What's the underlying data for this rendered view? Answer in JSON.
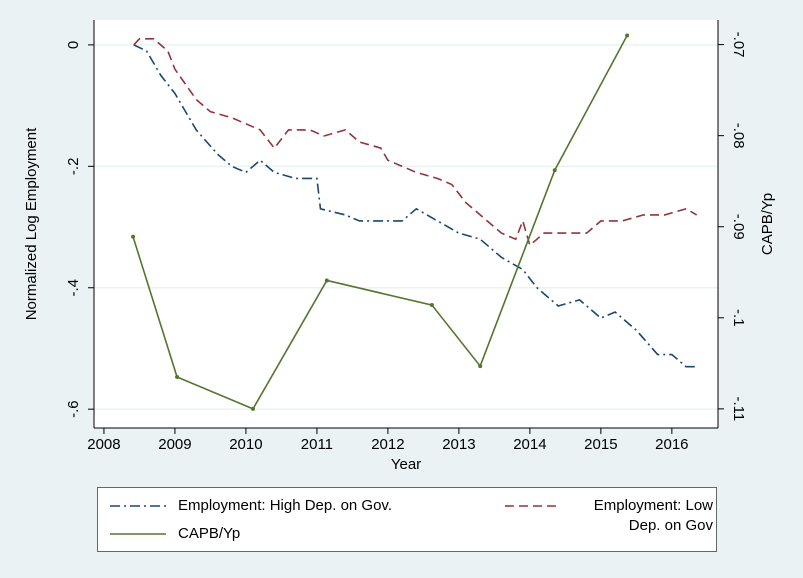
{
  "chart_data": {
    "type": "line",
    "xlabel": "Year",
    "ylabel": "Normalized Log Employment",
    "y2label": "CAPB/Yp",
    "xlim": [
      2007.86,
      2016.65
    ],
    "xticks": [
      2008,
      2009,
      2010,
      2011,
      2012,
      2013,
      2014,
      2015,
      2016
    ],
    "ylim": [
      -0.631,
      0.041
    ],
    "yticks": [
      {
        "value": 0,
        "label": "0"
      },
      {
        "value": -0.2,
        "label": "-.2"
      },
      {
        "value": -0.4,
        "label": "-.4"
      },
      {
        "value": -0.6,
        "label": "-.6"
      }
    ],
    "y2lim": [
      -0.1121,
      -0.0673
    ],
    "y2ticks": [
      {
        "value": -0.07,
        "label": "-.07"
      },
      {
        "value": -0.08,
        "label": "-.08"
      },
      {
        "value": -0.09,
        "label": "-.09"
      },
      {
        "value": -0.1,
        "label": "-.1"
      },
      {
        "value": -0.11,
        "label": "-.11"
      }
    ],
    "grid": true,
    "series": [
      {
        "name": "Employment: High Dep. on Gov.",
        "color": "#1a476f",
        "dash": "10 4 2 4",
        "x": [
          2008.42,
          2008.6,
          2008.8,
          2009.0,
          2009.3,
          2009.6,
          2009.8,
          2010.0,
          2010.2,
          2010.4,
          2010.7,
          2011.0,
          2011.05,
          2011.4,
          2011.6,
          2012.0,
          2012.2,
          2012.4,
          2012.7,
          2013.0,
          2013.3,
          2013.6,
          2013.9,
          2014.1,
          2014.4,
          2014.7,
          2015.0,
          2015.2,
          2015.5,
          2015.8,
          2016.0,
          2016.2,
          2016.35
        ],
        "values": [
          0,
          -0.01,
          -0.05,
          -0.08,
          -0.14,
          -0.18,
          -0.2,
          -0.21,
          -0.19,
          -0.21,
          -0.22,
          -0.22,
          -0.27,
          -0.28,
          -0.29,
          -0.29,
          -0.29,
          -0.27,
          -0.29,
          -0.31,
          -0.32,
          -0.35,
          -0.37,
          -0.4,
          -0.43,
          -0.42,
          -0.45,
          -0.44,
          -0.47,
          -0.51,
          -0.51,
          -0.53,
          -0.53
        ]
      },
      {
        "name": "Employment: Low Dep. on Gov",
        "color": "#90353b",
        "dash": "9 5",
        "x": [
          2008.42,
          2008.5,
          2008.7,
          2008.9,
          2009.0,
          2009.3,
          2009.5,
          2009.8,
          2010.0,
          2010.2,
          2010.4,
          2010.6,
          2010.9,
          2011.1,
          2011.4,
          2011.6,
          2011.9,
          2012.0,
          2012.4,
          2012.7,
          2012.9,
          2013.1,
          2013.4,
          2013.6,
          2013.8,
          2013.9,
          2014.0,
          2014.2,
          2014.5,
          2014.8,
          2015.0,
          2015.3,
          2015.6,
          2015.9,
          2016.2,
          2016.35
        ],
        "values": [
          0,
          0.01,
          0.01,
          -0.01,
          -0.04,
          -0.09,
          -0.11,
          -0.12,
          -0.13,
          -0.14,
          -0.17,
          -0.14,
          -0.14,
          -0.15,
          -0.14,
          -0.16,
          -0.17,
          -0.19,
          -0.21,
          -0.22,
          -0.23,
          -0.26,
          -0.29,
          -0.31,
          -0.32,
          -0.29,
          -0.33,
          -0.31,
          -0.31,
          -0.31,
          -0.29,
          -0.29,
          -0.28,
          -0.28,
          -0.27,
          -0.28
        ]
      },
      {
        "name": "CAPB/Yp",
        "color": "#55752f",
        "axis": "y2",
        "markers": true,
        "x": [
          2008.41,
          2009.03,
          2010.1,
          2011.14,
          2012.62,
          2013.3,
          2014.35,
          2015.37
        ],
        "values": [
          -0.0911,
          -0.1065,
          -0.11,
          -0.0959,
          -0.0986,
          -0.1053,
          -0.0838,
          -0.069
        ]
      }
    ]
  }
}
